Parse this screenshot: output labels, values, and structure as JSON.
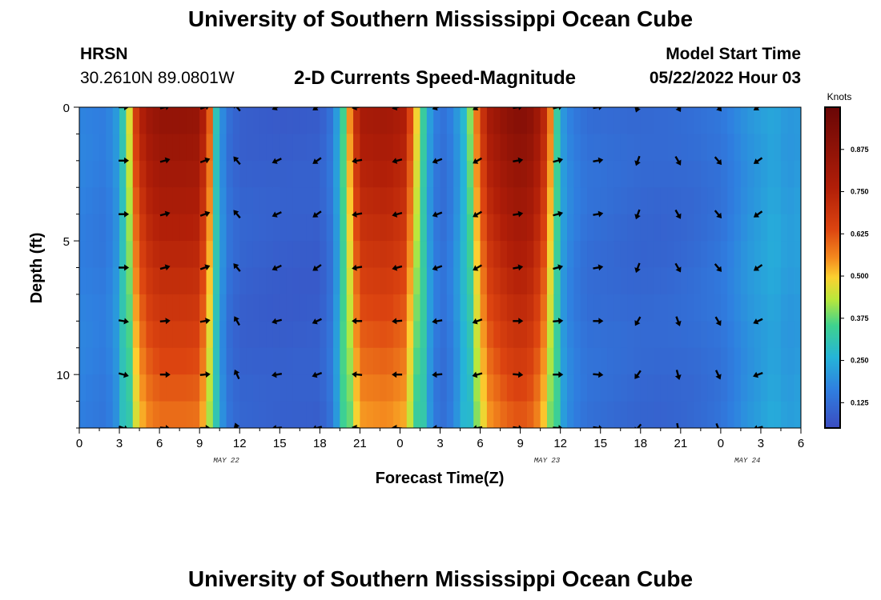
{
  "header": {
    "title": "University of Southern Mississippi Ocean Cube",
    "station": "HRSN",
    "coordinates": "30.2610N  89.0801W",
    "subtitle": "2-D Currents Speed-Magnitude",
    "model_start_label": "Model Start Time",
    "model_start_value": "05/22/2022 Hour 03"
  },
  "footer": {
    "title": "University of Southern Mississippi Ocean Cube"
  },
  "colors": {
    "low": "#3a5fd8",
    "mid": "#2ec4b0",
    "high": "#7a0a0a",
    "arrow": "#000000"
  },
  "chart_data": {
    "type": "heatmap",
    "title": "2-D Currents Speed-Magnitude",
    "xlabel": "Forecast Time(Z)",
    "ylabel": "Depth (ft)",
    "units": "Knots",
    "x_ticks": [
      "0",
      "3",
      "6",
      "9",
      "12",
      "15",
      "18",
      "21",
      "0",
      "3",
      "6",
      "9",
      "12",
      "15",
      "18",
      "21",
      "0",
      "3",
      "6"
    ],
    "x_range_hours": [
      0,
      54
    ],
    "date_labels": [
      {
        "text": "MAY 22",
        "hour": 11
      },
      {
        "text": "MAY 23",
        "hour": 35
      },
      {
        "text": "MAY 24",
        "hour": 50
      }
    ],
    "y_ticks": [
      0,
      5,
      10
    ],
    "y_range": [
      0,
      12
    ],
    "y_inverted": true,
    "colorbar": {
      "range": [
        0.05,
        1.0
      ],
      "ticks": [
        "0.125",
        "0.250",
        "0.375",
        "0.500",
        "0.625",
        "0.750",
        "0.875"
      ],
      "tick_values": [
        0.125,
        0.25,
        0.375,
        0.5,
        0.625,
        0.75,
        0.875
      ],
      "colormap": "jet"
    },
    "speed_profile": {
      "hours": [
        0,
        2,
        3,
        3.7,
        4.3,
        5,
        6,
        8,
        9,
        9.8,
        10.3,
        11,
        12,
        15,
        18,
        19,
        19.7,
        20.4,
        21,
        23,
        24.3,
        25,
        26,
        27,
        28,
        29,
        29.6,
        30.6,
        32,
        33,
        34,
        35,
        35.7,
        36.3,
        37,
        38,
        40,
        42,
        44,
        46,
        48,
        49,
        50,
        51,
        52,
        53,
        54
      ],
      "speed_knots": [
        0.17,
        0.15,
        0.22,
        0.45,
        0.7,
        0.82,
        0.87,
        0.87,
        0.86,
        0.6,
        0.27,
        0.14,
        0.1,
        0.09,
        0.09,
        0.15,
        0.33,
        0.62,
        0.8,
        0.82,
        0.78,
        0.58,
        0.24,
        0.12,
        0.17,
        0.3,
        0.55,
        0.8,
        0.89,
        0.92,
        0.88,
        0.7,
        0.35,
        0.2,
        0.16,
        0.13,
        0.12,
        0.11,
        0.11,
        0.12,
        0.14,
        0.17,
        0.2,
        0.22,
        0.24,
        0.21,
        0.22
      ],
      "depth_factor_note": "speeds slightly decrease with depth during strong-current periods"
    },
    "arrows": {
      "depths": [
        0,
        2,
        4,
        6,
        8,
        10,
        12
      ],
      "hours": [
        3.3,
        6.4,
        9.4,
        11.8,
        14.8,
        17.8,
        20.8,
        23.8,
        26.8,
        29.8,
        32.8,
        35.8,
        38.8,
        41.8,
        44.8,
        47.8,
        50.8
      ],
      "direction_deg_by_column": [
        90,
        75,
        70,
        320,
        245,
        235,
        260,
        255,
        250,
        240,
        80,
        75,
        80,
        200,
        150,
        140,
        235
      ],
      "depth_direction_offsets_deg": [
        0,
        0,
        0,
        0,
        10,
        15,
        20
      ],
      "note": "direction is compass bearing the current flows toward; arrows at depth 0 and 12 are partially clipped by plot frame"
    }
  }
}
